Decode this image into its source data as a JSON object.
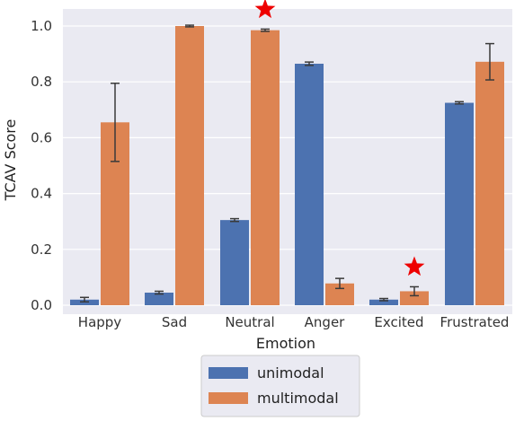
{
  "chart_data": {
    "type": "bar",
    "title": "",
    "xlabel": "Emotion",
    "ylabel": "TCAV Score",
    "ylim": [
      0,
      1.05
    ],
    "yticks": [
      "0.0",
      "0.2",
      "0.4",
      "0.6",
      "0.8",
      "1.0"
    ],
    "grid": true,
    "legend_position": "bottom-center",
    "categories": [
      "Happy",
      "Sad",
      "Neutral",
      "Anger",
      "Excited",
      "Frustrated"
    ],
    "series": [
      {
        "name": "unimodal",
        "color": "#4c72b0",
        "values": [
          0.02,
          0.045,
          0.305,
          0.865,
          0.02,
          0.725
        ],
        "errors": [
          0.008,
          0.005,
          0.005,
          0.006,
          0.004,
          0.004
        ]
      },
      {
        "name": "multimodal",
        "color": "#dd8452",
        "values": [
          0.655,
          1.0,
          0.985,
          0.078,
          0.05,
          0.872
        ],
        "errors": [
          0.14,
          0.003,
          0.004,
          0.018,
          0.016,
          0.065
        ]
      }
    ],
    "annotations": [
      {
        "type": "star",
        "category": "Neutral",
        "series": "multimodal",
        "color": "#ee0000"
      },
      {
        "type": "star",
        "category": "Excited",
        "series": "multimodal",
        "color": "#ee0000"
      }
    ]
  }
}
